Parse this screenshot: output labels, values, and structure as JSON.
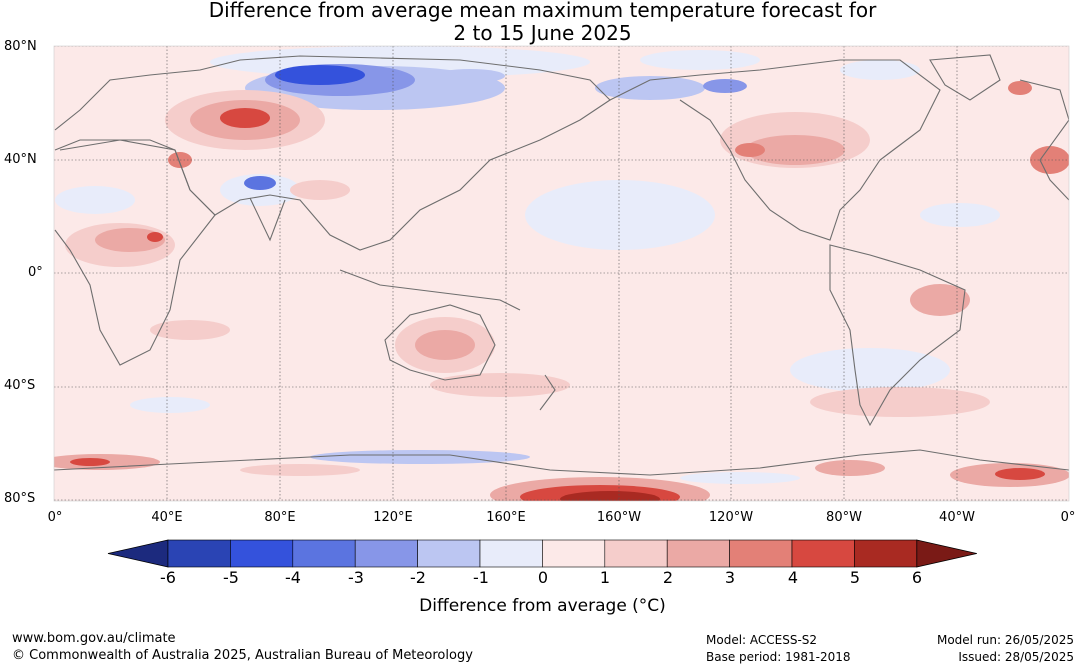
{
  "title": {
    "line1": "Difference from average mean maximum temperature forecast for",
    "line2": "2 to 15 June 2025"
  },
  "map": {
    "lat_labels": [
      "80°N",
      "40°N",
      "0°",
      "40°S",
      "80°S"
    ],
    "lon_labels": [
      "0°",
      "40°E",
      "80°E",
      "120°E",
      "160°E",
      "160°W",
      "120°W",
      "80°W",
      "40°W",
      "0°"
    ]
  },
  "colorbar": {
    "title": "Difference from average (°C)",
    "ticks": [
      "-6",
      "-5",
      "-4",
      "-3",
      "-2",
      "-1",
      "0",
      "1",
      "2",
      "3",
      "4",
      "5",
      "6"
    ],
    "colors": [
      "#1c2a7e",
      "#2a44b4",
      "#3452dc",
      "#5b74e0",
      "#8796e8",
      "#bcc6f2",
      "#e8ecfa",
      "#fce9e8",
      "#f5cdcb",
      "#eba9a5",
      "#e38077",
      "#d74840",
      "#a92a22",
      "#7a1a16"
    ]
  },
  "footer": {
    "website": "www.bom.gov.au/climate",
    "copyright": "© Commonwealth of Australia 2025, Australian Bureau of Meteorology",
    "model": "Model: ACCESS-S2",
    "base_period": "Base period: 1981-2018",
    "model_run": "Model run: 26/05/2025",
    "issued": "Issued: 28/05/2025"
  }
}
